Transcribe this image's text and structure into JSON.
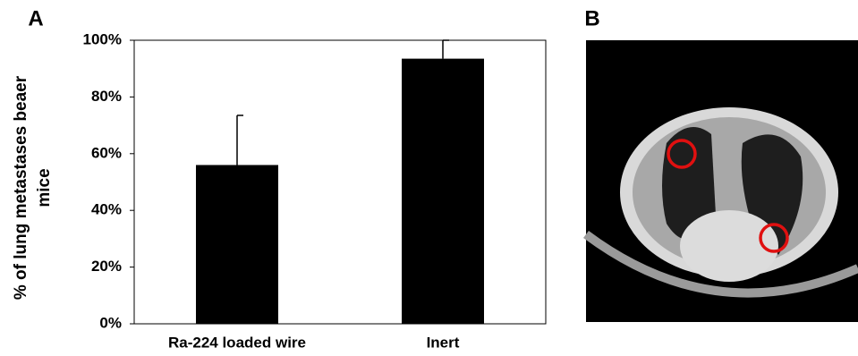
{
  "panel_a": "A",
  "panel_b": "B",
  "chart_data": {
    "type": "bar",
    "ylabel": [
      "% of lung metastases beaer",
      "mice"
    ],
    "categories": [
      "Ra-224 loaded wire",
      "Inert"
    ],
    "values": [
      56,
      93.5
    ],
    "errors": [
      17.5,
      6.5
    ],
    "color": "#000000",
    "ylim": [
      0,
      100
    ],
    "yticks": [
      {
        "value": 0,
        "label": "0%"
      },
      {
        "value": 20,
        "label": "20%"
      },
      {
        "value": 40,
        "label": "40%"
      },
      {
        "value": 60,
        "label": "60%"
      },
      {
        "value": 80,
        "label": "80%"
      },
      {
        "value": 100,
        "label": "100%"
      }
    ],
    "grid": false
  }
}
